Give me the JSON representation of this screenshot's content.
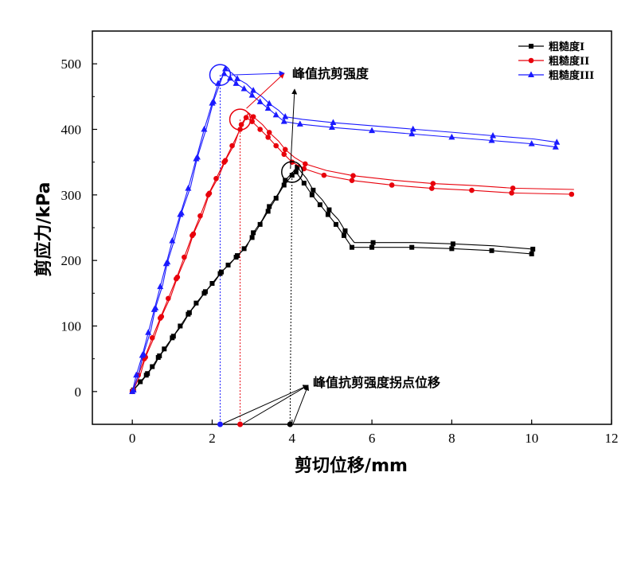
{
  "chart_data": {
    "type": "line",
    "title": "",
    "xlabel": "剪切位移/mm",
    "ylabel": "剪应力/kPa",
    "xlim": [
      -1,
      12
    ],
    "ylim": [
      -50,
      550
    ],
    "xticks": [
      0,
      2,
      4,
      6,
      8,
      10,
      12
    ],
    "yticks": [
      0,
      100,
      200,
      300,
      400,
      500
    ],
    "grid": false,
    "legend_position": "top-right",
    "series": [
      {
        "name": "粗糙度I",
        "color": "#000000",
        "marker": "square",
        "points": [
          [
            0,
            0
          ],
          [
            0.2,
            15
          ],
          [
            0.35,
            25
          ],
          [
            0.5,
            38
          ],
          [
            0.65,
            52
          ],
          [
            0.8,
            65
          ],
          [
            1.0,
            82
          ],
          [
            1.2,
            100
          ],
          [
            1.4,
            118
          ],
          [
            1.6,
            135
          ],
          [
            1.8,
            150
          ],
          [
            2.0,
            165
          ],
          [
            2.2,
            180
          ],
          [
            2.4,
            193
          ],
          [
            2.6,
            205
          ],
          [
            2.8,
            218
          ],
          [
            3.0,
            235
          ],
          [
            3.2,
            255
          ],
          [
            3.4,
            275
          ],
          [
            3.6,
            295
          ],
          [
            3.8,
            315
          ],
          [
            4.0,
            330
          ],
          [
            4.1,
            335
          ],
          [
            4.3,
            318
          ],
          [
            4.5,
            300
          ],
          [
            4.7,
            285
          ],
          [
            4.9,
            270
          ],
          [
            5.1,
            255
          ],
          [
            5.3,
            238
          ],
          [
            5.5,
            220
          ],
          [
            6.0,
            220
          ],
          [
            7.0,
            220
          ],
          [
            8.0,
            218
          ],
          [
            9.0,
            215
          ],
          [
            10.0,
            210
          ]
        ]
      },
      {
        "name": "粗糙度II",
        "color": "#e8000b",
        "marker": "circle",
        "points": [
          [
            0,
            0
          ],
          [
            0.15,
            25
          ],
          [
            0.3,
            50
          ],
          [
            0.5,
            82
          ],
          [
            0.7,
            112
          ],
          [
            0.9,
            142
          ],
          [
            1.1,
            172
          ],
          [
            1.3,
            205
          ],
          [
            1.5,
            238
          ],
          [
            1.7,
            268
          ],
          [
            1.9,
            300
          ],
          [
            2.1,
            325
          ],
          [
            2.3,
            350
          ],
          [
            2.5,
            375
          ],
          [
            2.7,
            400
          ],
          [
            2.85,
            418
          ],
          [
            3.0,
            412
          ],
          [
            3.2,
            400
          ],
          [
            3.4,
            388
          ],
          [
            3.6,
            375
          ],
          [
            3.8,
            362
          ],
          [
            4.0,
            350
          ],
          [
            4.3,
            340
          ],
          [
            4.8,
            330
          ],
          [
            5.5,
            322
          ],
          [
            6.5,
            315
          ],
          [
            7.5,
            310
          ],
          [
            8.5,
            307
          ],
          [
            9.5,
            303
          ],
          [
            11.0,
            301
          ]
        ]
      },
      {
        "name": "粗糙度III",
        "color": "#1a1aff",
        "marker": "triangle",
        "points": [
          [
            0,
            0
          ],
          [
            0.1,
            25
          ],
          [
            0.25,
            55
          ],
          [
            0.4,
            90
          ],
          [
            0.55,
            125
          ],
          [
            0.7,
            160
          ],
          [
            0.85,
            195
          ],
          [
            1.0,
            230
          ],
          [
            1.2,
            270
          ],
          [
            1.4,
            310
          ],
          [
            1.6,
            355
          ],
          [
            1.8,
            400
          ],
          [
            2.0,
            440
          ],
          [
            2.15,
            470
          ],
          [
            2.3,
            485
          ],
          [
            2.45,
            478
          ],
          [
            2.6,
            470
          ],
          [
            2.8,
            462
          ],
          [
            3.0,
            452
          ],
          [
            3.2,
            442
          ],
          [
            3.4,
            432
          ],
          [
            3.6,
            422
          ],
          [
            3.8,
            412
          ],
          [
            4.2,
            408
          ],
          [
            5.0,
            403
          ],
          [
            6.0,
            398
          ],
          [
            7.0,
            393
          ],
          [
            8.0,
            388
          ],
          [
            9.0,
            383
          ],
          [
            10.0,
            378
          ],
          [
            10.6,
            373
          ]
        ]
      }
    ],
    "annotations": {
      "peak_label": "峰值抗剪强度",
      "displacement_label": "峰值抗剪强度拐点位移",
      "peaks": [
        {
          "series": "粗糙度I",
          "x": 4.0,
          "y": 335,
          "color": "#000000"
        },
        {
          "series": "粗糙度II",
          "x": 2.7,
          "y": 415,
          "color": "#e8000b"
        },
        {
          "series": "粗糙度III",
          "x": 2.2,
          "y": 483,
          "color": "#1a1aff"
        }
      ],
      "displacement_markers": [
        {
          "series": "粗糙度III",
          "x": 2.2,
          "y": -50,
          "color": "#1a1aff"
        },
        {
          "series": "粗糙度II",
          "x": 2.7,
          "y": -50,
          "color": "#e8000b"
        },
        {
          "series": "粗糙度I",
          "x": 3.95,
          "y": -50,
          "color": "#000000"
        }
      ]
    }
  }
}
